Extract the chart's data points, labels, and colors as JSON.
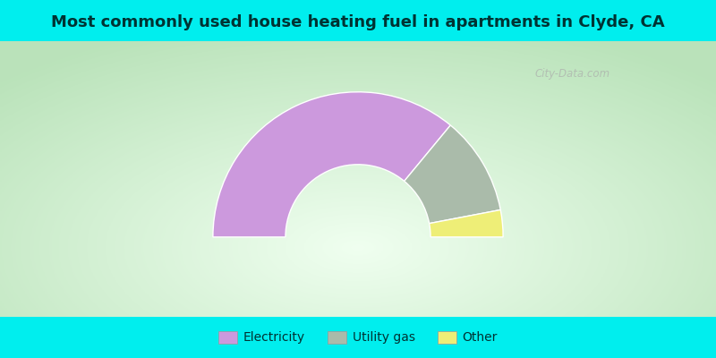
{
  "title": "Most commonly used house heating fuel in apartments in Clyde, CA",
  "segments": [
    {
      "label": "Electricity",
      "value": 72,
      "color": "#CC99DD"
    },
    {
      "label": "Utility gas",
      "value": 22,
      "color": "#AABBAA"
    },
    {
      "label": "Other",
      "value": 6,
      "color": "#EEEE77"
    }
  ],
  "cyan_color": "#00EEEE",
  "title_color": "#003333",
  "title_fontsize": 13,
  "legend_fontsize": 10,
  "watermark": "City-Data.com",
  "outer_r": 1.0,
  "inner_r": 0.5,
  "top_bar_height": 0.115,
  "bot_bar_height": 0.115
}
